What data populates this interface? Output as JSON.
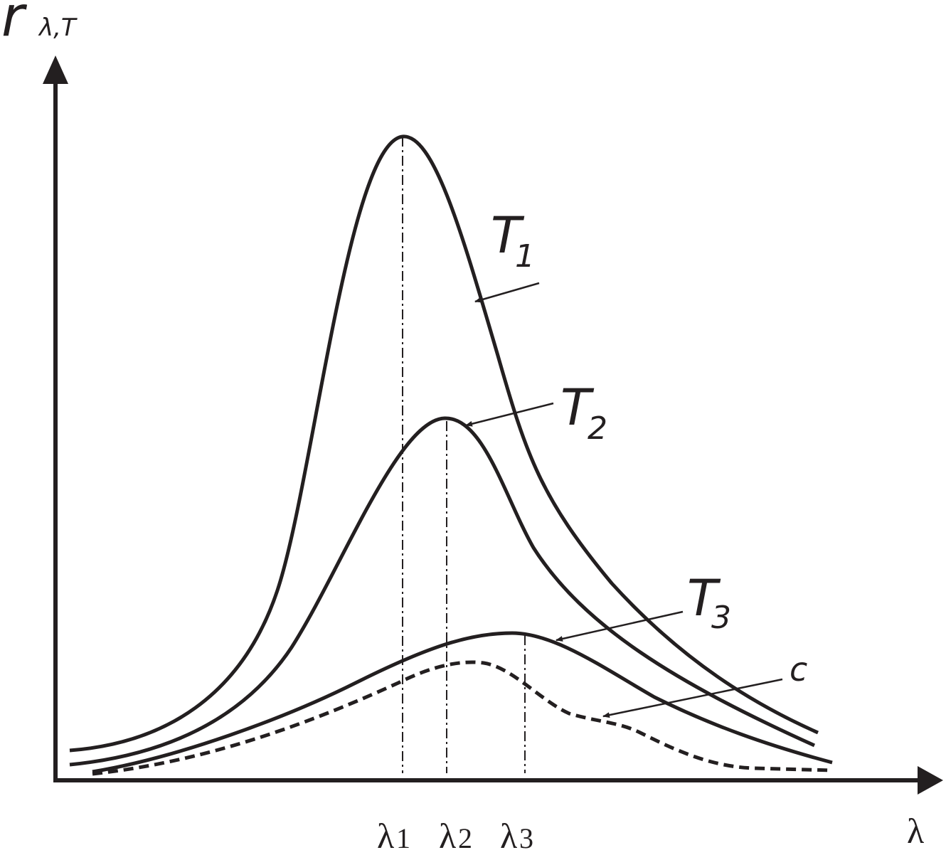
{
  "axes": {
    "y_label": {
      "main": "r",
      "subscript": "λ,T"
    },
    "x_label": "λ"
  },
  "curves": [
    {
      "label": "T",
      "subscript": "1"
    },
    {
      "label": "T",
      "subscript": "2"
    },
    {
      "label": "T",
      "subscript": "3"
    },
    {
      "label": "c"
    }
  ],
  "markers": [
    {
      "symbol": "λ",
      "subscript": "1"
    },
    {
      "symbol": "λ",
      "subscript": "2"
    },
    {
      "symbol": "λ",
      "subscript": "3"
    }
  ]
}
